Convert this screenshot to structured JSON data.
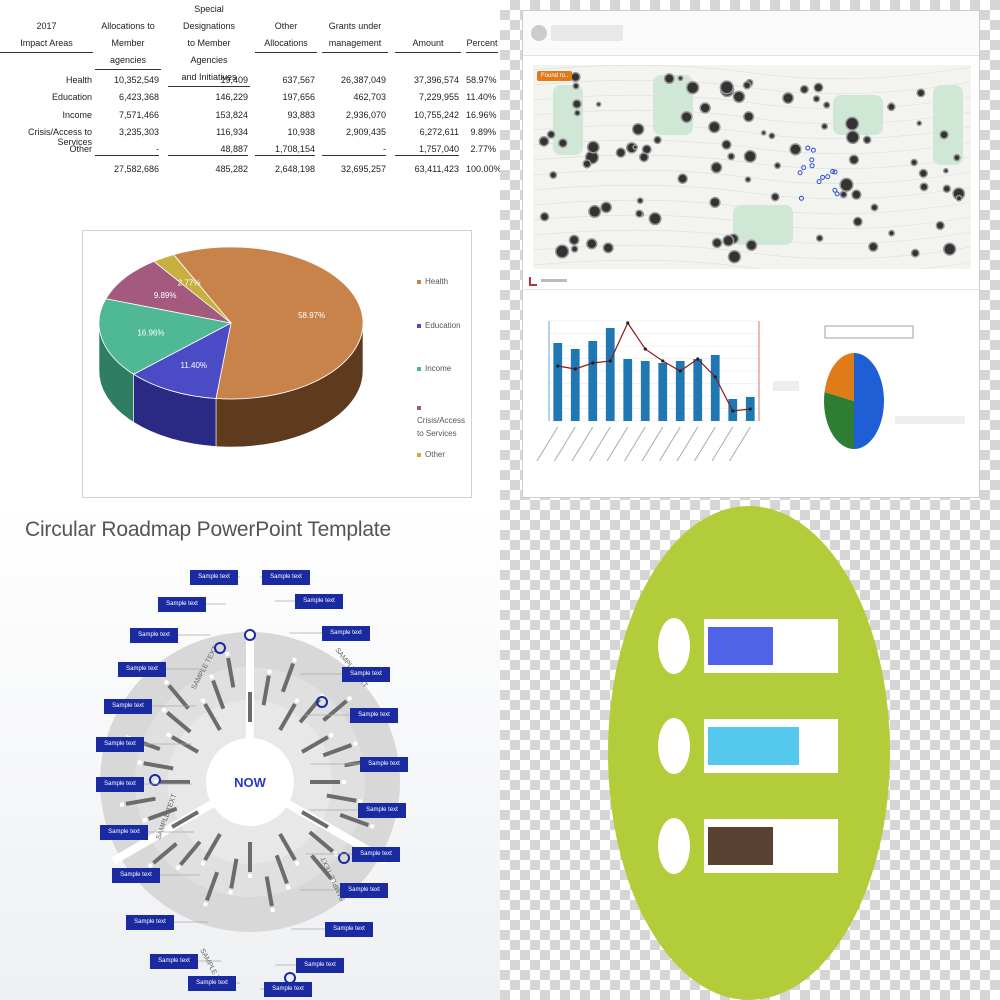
{
  "table": {
    "headers": [
      [
        "2017",
        "Impact Areas"
      ],
      [
        "Allocations to",
        "Member agencies"
      ],
      [
        "Special Designations",
        "to Member Agencies",
        "and Initiatives"
      ],
      [
        "Other",
        "Allocations"
      ],
      [
        "Grants under",
        "management"
      ],
      [
        "Amount"
      ],
      [
        "Percent"
      ]
    ],
    "rows": [
      {
        "area": "Health",
        "alloc": "10,352,549",
        "special": "19,409",
        "other": "637,567",
        "grants": "26,387,049",
        "amount": "37,396,574",
        "percent": "58.97%"
      },
      {
        "area": "Education",
        "alloc": "6,423,368",
        "special": "146,229",
        "other": "197,656",
        "grants": "462,703",
        "amount": "7,229,955",
        "percent": "11.40%"
      },
      {
        "area": "Income",
        "alloc": "7,571,466",
        "special": "153,824",
        "other": "93,883",
        "grants": "2,936,070",
        "amount": "10,755,242",
        "percent": "16.96%"
      },
      {
        "area": "Crisis/Access to Services",
        "alloc": "3,235,303",
        "special": "116,934",
        "other": "10,938",
        "grants": "2,909,435",
        "amount": "6,272,611",
        "percent": "9.89%"
      },
      {
        "area": "Other",
        "alloc": "-",
        "special": "48,887",
        "other": "1,708,154",
        "grants": "-",
        "amount": "1,757,040",
        "percent": "2.77%"
      }
    ],
    "totals": {
      "alloc": "27,582,686",
      "special": "485,282",
      "other": "2,648,198",
      "grants": "32,695,257",
      "amount": "63,411,423",
      "percent": "100.00%"
    }
  },
  "chart_data": [
    {
      "type": "pie",
      "categories": [
        "Health",
        "Education",
        "Income",
        "Crisis/Access to Services",
        "Other"
      ],
      "values": [
        58.97,
        11.4,
        16.96,
        9.89,
        2.77
      ],
      "labels": [
        "58.97%",
        "11.40%",
        "16.96%",
        "9.89%",
        "2.77%"
      ],
      "colors": [
        "#c8834a",
        "#4b4bc6",
        "#4fb894",
        "#a35a7e",
        "#c8b040"
      ],
      "side_colors": [
        "#5e3a1e",
        "#2a2a85",
        "#2f7d62",
        "#6d3553",
        "#8a7a25"
      ],
      "legend_position": "right",
      "legend": [
        "Health",
        "Education",
        "Income",
        "Crisis/Access\nto Services",
        "Other"
      ]
    },
    {
      "type": "bar",
      "values": [
        78,
        72,
        80,
        93,
        62,
        60,
        58,
        60,
        62,
        66,
        22,
        24
      ],
      "line_values": [
        55,
        52,
        58,
        60,
        98,
        72,
        60,
        50,
        62,
        44,
        10,
        12
      ],
      "colors": {
        "bar": "#1f77b4",
        "line": "#8b1a1a"
      },
      "ylim": [
        0,
        100
      ]
    },
    {
      "type": "pie",
      "values": [
        50,
        28,
        22
      ],
      "colors": [
        "#1f5fd6",
        "#2e7d32",
        "#e07b1a"
      ]
    }
  ],
  "dashboard": {
    "map_badge": "Found ro.."
  },
  "roadmap": {
    "title": "Circular Roadmap PowerPoint Template",
    "center": "NOW",
    "box_label": "Sample text",
    "arc_label": "SAMPLE TEXT"
  },
  "icon_panel": {
    "bg_color": "#b3cc3a",
    "bars": [
      {
        "color": "#4f62e8",
        "fill": 0.5
      },
      {
        "color": "#55c8ee",
        "fill": 0.7
      },
      {
        "color": "#5a4232",
        "fill": 0.5
      }
    ]
  }
}
